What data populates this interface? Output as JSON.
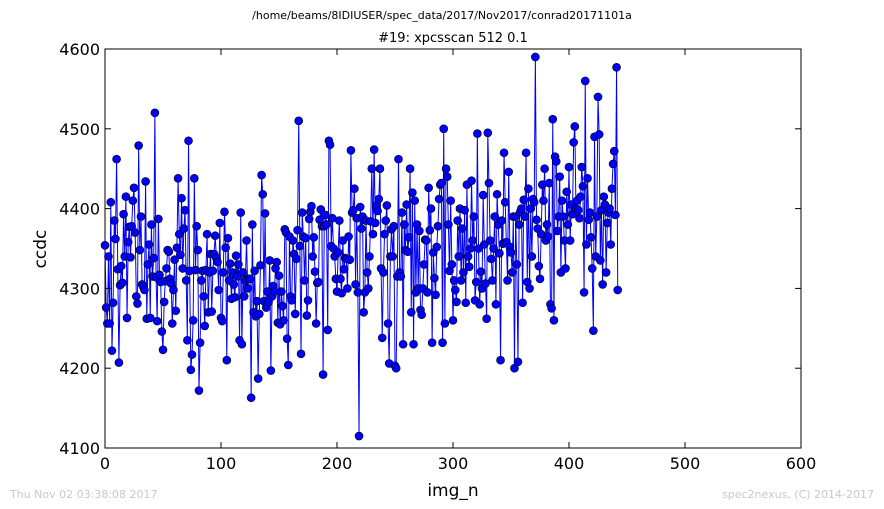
{
  "suptitle": "/home/beams/8IDIUSER/spec_data/2017/Nov2017/conrad20171101a",
  "footer_left": "Thu Nov 02 03:38:08 2017",
  "footer_right": "spec2nexus, (C) 2014-2017",
  "colors": {
    "series": "#0000ff",
    "axes": "#000000",
    "footer": "#c8c8c8"
  },
  "chart_data": {
    "type": "line",
    "title": "#19: xpcsscan 512 0.1",
    "xlabel": "img_n",
    "ylabel": "ccdc",
    "xlim": [
      0,
      600
    ],
    "ylim": [
      4100,
      4600
    ],
    "xticks": [
      0,
      100,
      200,
      300,
      400,
      500,
      600
    ],
    "yticks": [
      4100,
      4200,
      4300,
      4400,
      4500,
      4600
    ],
    "grid": false,
    "marker": "circle",
    "series": [
      {
        "y": [
          4354,
          4276,
          4256,
          4340,
          4256,
          4408,
          4222,
          4282,
          4385,
          4362,
          4462,
          4324,
          4207,
          4304,
          4328,
          4307,
          4393,
          4340,
          4415,
          4263,
          4358,
          4377,
          4339,
          4378,
          4410,
          4426,
          4370,
          4290,
          4281,
          4479,
          4348,
          4390,
          4305,
          4302,
          4298,
          4434,
          4262,
          4330,
          4355,
          4263,
          4380,
          4315,
          4338,
          4520,
          4314,
          4259,
          4387,
          4317,
          4308,
          4246,
          4223,
          4283,
          4309,
          4325,
          4348,
          4346,
          4312,
          4306,
          4256,
          4298,
          4336,
          4272,
          4351,
          4438,
          4368,
          4342,
          4413,
          4325,
          4375,
          4398,
          4310,
          4235,
          4485,
          4322,
          4198,
          4217,
          4260,
          4438,
          4323,
          4378,
          4348,
          4172,
          4232,
          4310,
          4322,
          4290,
          4253,
          4323,
          4368,
          4270,
          4320,
          4343,
          4271,
          4322,
          4343,
          4366,
          4338,
          4333,
          4298,
          4382,
          4263,
          4259,
          4320,
          4396,
          4351,
          4210,
          4363,
          4310,
          4331,
          4287,
          4320,
          4305,
          4289,
          4341,
          4315,
          4330,
          4235,
          4395,
          4230,
          4320,
          4290,
          4310,
          4360,
          4300,
          4312,
          4312,
          4163,
          4380,
          4270,
          4322,
          4265,
          4284,
          4187,
          4268,
          4329,
          4442,
          4418,
          4284,
          4394,
          4276,
          4296,
          4283,
          4335,
          4197,
          4290,
          4303,
          4296,
          4325,
          4333,
          4257,
          4316,
          4255,
          4296,
          4278,
          4260,
          4374,
          4370,
          4237,
          4204,
          4365,
          4290,
          4285,
          4360,
          4343,
          4268,
          4337,
          4373,
          4510,
          4353,
          4218,
          4395,
          4365,
          4310,
          4363,
          4266,
          4285,
          4387,
          4396,
          4403,
          4340,
          4364,
          4321,
          4256,
          4307,
          4308,
          4386,
          4399,
          4378,
          4192,
          4378,
          4392,
          4380,
          4248,
          4485,
          4480,
          4353,
          4388,
          4350,
          4340,
          4312,
          4296,
          4345,
          4385,
          4312,
          4294,
          4360,
          4324,
          4338,
          4337,
          4300,
          4365,
          4336,
          4473,
          4395,
          4398,
          4425,
          4305,
          4388,
          4295,
          4115,
          4402,
          4375,
          4390,
          4270,
          4295,
          4385,
          4320,
          4300,
          4340,
          4384,
          4450,
          4368,
          4474,
          4382,
          4404,
          4397,
          4412,
          4450,
          4325,
          4238,
          4320,
          4368,
          4385,
          4404,
          4256,
          4206,
          4340,
          4374,
          4340,
          4378,
          4203,
          4200,
          4315,
          4462,
          4320,
          4315,
          4395,
          4230,
          4380,
          4348,
          4405,
          4346,
          4364,
          4450,
          4270,
          4420,
          4230,
          4410,
          4295,
          4380,
          4300,
          4372,
          4273,
          4267,
          4300,
          4330,
          4361,
          4360,
          4295,
          4426,
          4373,
          4400,
          4232,
          4345,
          4313,
          4292,
          4352,
          4378,
          4412,
          4430,
          4432,
          4232,
          4500,
          4256,
          4450,
          4440,
          4380,
          4322,
          4410,
          4330,
          4260,
          4310,
          4298,
          4283,
          4385,
          4340,
          4400,
          4310,
          4375,
          4320,
          4398,
          4282,
          4430,
          4340,
          4327,
          4350,
          4435,
          4360,
          4390,
          4285,
          4308,
          4494,
          4350,
          4280,
          4321,
          4300,
          4417,
          4355,
          4306,
          4262,
          4495,
          4432,
          4360,
          4337,
          4310,
          4350,
          4390,
          4280,
          4418,
          4380,
          4344,
          4210,
          4385,
          4356,
          4470,
          4408,
          4358,
          4310,
          4446,
          4352,
          4345,
          4320,
          4390,
          4200,
          4390,
          4330,
          4208,
          4380,
          4396,
          4400,
          4282,
          4411,
          4390,
          4470,
          4308,
          4425,
          4300,
          4400,
          4340,
          4412,
          4408,
          4590,
          4386,
          4375,
          4328,
          4312,
          4368,
          4430,
          4410,
          4450,
          4360,
          4380,
          4365,
          4432,
          4280,
          4275,
          4512,
          4260,
          4465,
          4459,
          4372,
          4390,
          4440,
          4320,
          4410,
          4390,
          4360,
          4325,
          4421,
          4380,
          4452,
          4360,
          4405,
          4393,
          4483,
          4503,
          4400,
          4410,
          4398,
          4388,
          4415,
          4452,
          4428,
          4295,
          4560,
          4355,
          4438,
          4386,
          4395,
          4364,
          4325,
          4247,
          4490,
          4340,
          4390,
          4540,
          4493,
          4335,
          4398,
          4305,
          4415,
          4405,
          4320,
          4382,
          4395,
          4400,
          4355,
          4425,
          4456,
          4472,
          4392,
          4577,
          4298
        ]
      }
    ]
  }
}
